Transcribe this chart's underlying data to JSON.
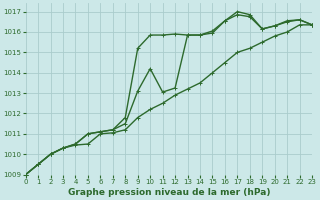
{
  "title": "Graphe pression niveau de la mer (hPa)",
  "background_color": "#cce8e8",
  "grid_color": "#aacccc",
  "line_color": "#2d6a2d",
  "xlim": [
    0,
    23
  ],
  "ylim": [
    1009,
    1017.4
  ],
  "xticks": [
    0,
    1,
    2,
    3,
    4,
    5,
    6,
    7,
    8,
    9,
    10,
    11,
    12,
    13,
    14,
    15,
    16,
    17,
    18,
    19,
    20,
    21,
    22,
    23
  ],
  "yticks": [
    1009,
    1010,
    1011,
    1012,
    1013,
    1014,
    1015,
    1016,
    1017
  ],
  "line1_y": [
    1009.0,
    1009.5,
    1010.0,
    1010.3,
    1010.5,
    1011.0,
    1011.1,
    1011.2,
    1011.8,
    1015.2,
    1015.85,
    1015.85,
    1015.9,
    1015.85,
    1015.85,
    1016.05,
    1016.55,
    1017.0,
    1016.85,
    1016.15,
    1016.3,
    1016.55,
    1016.6,
    1016.35
  ],
  "line2_y": [
    1009.0,
    1009.5,
    1010.0,
    1010.3,
    1010.5,
    1011.0,
    1011.1,
    1011.2,
    1011.5,
    1013.1,
    1014.2,
    1013.05,
    1013.25,
    1015.85,
    1015.85,
    1015.95,
    1016.55,
    1016.85,
    1016.75,
    1016.15,
    1016.3,
    1016.5,
    1016.6,
    1016.35
  ],
  "line3_y": [
    1009.0,
    1009.5,
    1010.0,
    1010.3,
    1010.45,
    1010.5,
    1011.0,
    1011.05,
    1011.2,
    1011.8,
    1012.2,
    1012.5,
    1012.9,
    1013.2,
    1013.5,
    1014.0,
    1014.5,
    1015.0,
    1015.2,
    1015.5,
    1015.8,
    1016.0,
    1016.35,
    1016.35
  ],
  "xlabel_fontsize": 6.5,
  "tick_fontsize": 5,
  "linewidth": 1.0,
  "markersize": 2.5
}
